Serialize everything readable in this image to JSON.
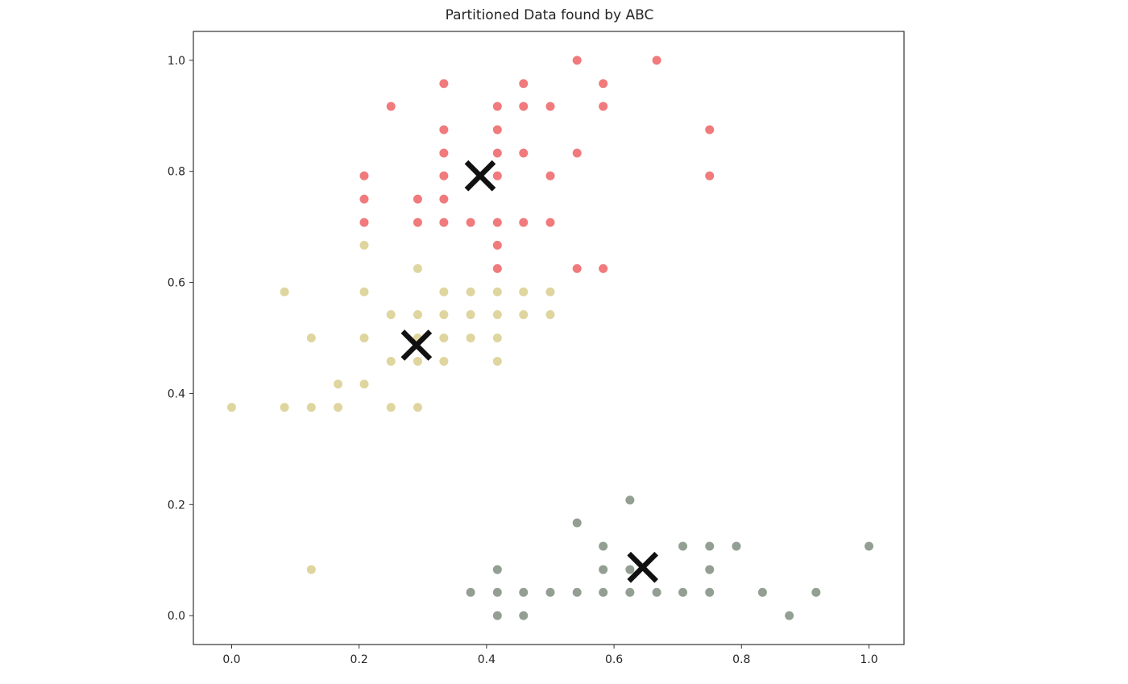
{
  "chart_data": {
    "type": "scatter",
    "title": "Partitioned Data found by ABC",
    "xlabel": "",
    "ylabel": "",
    "xlim": [
      -0.06,
      1.055
    ],
    "ylim": [
      -0.052,
      1.052
    ],
    "x_ticks": [
      0.0,
      0.2,
      0.4,
      0.6,
      0.8,
      1.0
    ],
    "x_tick_labels": [
      "0.0",
      "0.2",
      "0.4",
      "0.6",
      "0.8",
      "1.0"
    ],
    "y_ticks": [
      0.0,
      0.2,
      0.4,
      0.6,
      0.8,
      1.0
    ],
    "y_tick_labels": [
      "0.0",
      "0.2",
      "0.4",
      "0.6",
      "0.8",
      "1.0"
    ],
    "grid": false,
    "colors": {
      "cluster_red": "#ee6b6e",
      "cluster_tan": "#dcd094",
      "cluster_green": "#6e7f6e",
      "centroid": "#111111",
      "axis": "#333333",
      "text": "#262626"
    },
    "series": [
      {
        "name": "cluster-red",
        "color": "#ee6b6e",
        "opacity": 0.9,
        "points": [
          [
            0.542,
            1.0
          ],
          [
            0.667,
            1.0
          ],
          [
            0.333,
            0.958
          ],
          [
            0.458,
            0.958
          ],
          [
            0.583,
            0.958
          ],
          [
            0.25,
            0.917
          ],
          [
            0.417,
            0.917
          ],
          [
            0.458,
            0.917
          ],
          [
            0.5,
            0.917
          ],
          [
            0.583,
            0.917
          ],
          [
            0.333,
            0.875
          ],
          [
            0.417,
            0.875
          ],
          [
            0.75,
            0.875
          ],
          [
            0.333,
            0.833
          ],
          [
            0.417,
            0.833
          ],
          [
            0.458,
            0.833
          ],
          [
            0.542,
            0.833
          ],
          [
            0.208,
            0.792
          ],
          [
            0.333,
            0.792
          ],
          [
            0.417,
            0.792
          ],
          [
            0.5,
            0.792
          ],
          [
            0.75,
            0.792
          ],
          [
            0.208,
            0.75
          ],
          [
            0.292,
            0.75
          ],
          [
            0.333,
            0.75
          ],
          [
            0.208,
            0.708
          ],
          [
            0.292,
            0.708
          ],
          [
            0.333,
            0.708
          ],
          [
            0.375,
            0.708
          ],
          [
            0.417,
            0.708
          ],
          [
            0.458,
            0.708
          ],
          [
            0.5,
            0.708
          ],
          [
            0.417,
            0.667
          ],
          [
            0.417,
            0.625
          ],
          [
            0.542,
            0.625
          ],
          [
            0.583,
            0.625
          ]
        ]
      },
      {
        "name": "cluster-tan",
        "color": "#dcd094",
        "opacity": 0.9,
        "points": [
          [
            0.208,
            0.667
          ],
          [
            0.292,
            0.625
          ],
          [
            0.083,
            0.583
          ],
          [
            0.208,
            0.583
          ],
          [
            0.333,
            0.583
          ],
          [
            0.375,
            0.583
          ],
          [
            0.417,
            0.583
          ],
          [
            0.458,
            0.583
          ],
          [
            0.5,
            0.583
          ],
          [
            0.25,
            0.542
          ],
          [
            0.292,
            0.542
          ],
          [
            0.333,
            0.542
          ],
          [
            0.375,
            0.542
          ],
          [
            0.417,
            0.542
          ],
          [
            0.458,
            0.542
          ],
          [
            0.5,
            0.542
          ],
          [
            0.125,
            0.5
          ],
          [
            0.208,
            0.5
          ],
          [
            0.292,
            0.5
          ],
          [
            0.333,
            0.5
          ],
          [
            0.375,
            0.5
          ],
          [
            0.417,
            0.5
          ],
          [
            0.25,
            0.458
          ],
          [
            0.292,
            0.458
          ],
          [
            0.333,
            0.458
          ],
          [
            0.417,
            0.458
          ],
          [
            0.167,
            0.417
          ],
          [
            0.208,
            0.417
          ],
          [
            0.0,
            0.375
          ],
          [
            0.083,
            0.375
          ],
          [
            0.125,
            0.375
          ],
          [
            0.167,
            0.375
          ],
          [
            0.25,
            0.375
          ],
          [
            0.292,
            0.375
          ],
          [
            0.125,
            0.083
          ]
        ]
      },
      {
        "name": "cluster-green",
        "color": "#6e7f6e",
        "opacity": 0.75,
        "points": [
          [
            0.625,
            0.208
          ],
          [
            0.542,
            0.167
          ],
          [
            0.583,
            0.125
          ],
          [
            0.708,
            0.125
          ],
          [
            0.75,
            0.125
          ],
          [
            0.792,
            0.125
          ],
          [
            1.0,
            0.125
          ],
          [
            0.417,
            0.083
          ],
          [
            0.583,
            0.083
          ],
          [
            0.625,
            0.083
          ],
          [
            0.75,
            0.083
          ],
          [
            0.375,
            0.042
          ],
          [
            0.417,
            0.042
          ],
          [
            0.458,
            0.042
          ],
          [
            0.5,
            0.042
          ],
          [
            0.542,
            0.042
          ],
          [
            0.583,
            0.042
          ],
          [
            0.625,
            0.042
          ],
          [
            0.667,
            0.042
          ],
          [
            0.708,
            0.042
          ],
          [
            0.75,
            0.042
          ],
          [
            0.833,
            0.042
          ],
          [
            0.917,
            0.042
          ],
          [
            0.417,
            0.0
          ],
          [
            0.458,
            0.0
          ],
          [
            0.875,
            0.0
          ]
        ]
      }
    ],
    "centroids": [
      [
        0.39,
        0.792
      ],
      [
        0.29,
        0.487
      ],
      [
        0.645,
        0.087
      ]
    ]
  }
}
